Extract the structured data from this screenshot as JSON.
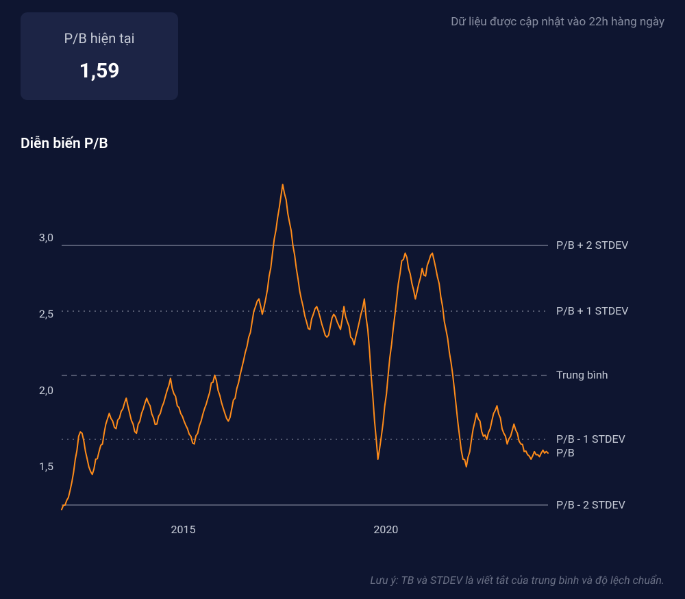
{
  "header": {
    "update_note": "Dữ liệu được cập nhật vào 22h hàng ngày"
  },
  "card": {
    "title": "P/B hiện tại",
    "value": "1,59"
  },
  "chart": {
    "title": "Diễn biến P/B",
    "type": "line",
    "background_color": "#0e1530",
    "line_color": "#ff8c1a",
    "line_width": 2,
    "grid_color": "#6b7186",
    "text_color": "#c8cdd8",
    "label_fontsize": 16,
    "ylim": [
      1.2,
      3.4
    ],
    "yticks": [
      1.5,
      2.0,
      2.5,
      3.0
    ],
    "ytick_labels": [
      "1,5",
      "2,0",
      "2,5",
      "3,0"
    ],
    "x_start_year": 2012,
    "x_end_year": 2024,
    "xticks": [
      2015,
      2020
    ],
    "xtick_labels": [
      "2015",
      "2020"
    ],
    "ref_lines": [
      {
        "y": 2.95,
        "label": "P/B + 2 STDEV",
        "style": "solid"
      },
      {
        "y": 2.52,
        "label": "P/B + 1 STDEV",
        "style": "dotted"
      },
      {
        "y": 2.1,
        "label": "Trung bình",
        "style": "dashed"
      },
      {
        "y": 1.68,
        "label": "P/B - 1 STDEV",
        "style": "dotted"
      },
      {
        "y": 1.59,
        "label": "P/B",
        "style": "none"
      },
      {
        "y": 1.25,
        "label": "P/B - 2 STDEV",
        "style": "solid"
      }
    ],
    "series": [
      1.22,
      1.25,
      1.3,
      1.4,
      1.55,
      1.7,
      1.72,
      1.6,
      1.5,
      1.45,
      1.55,
      1.6,
      1.65,
      1.78,
      1.85,
      1.8,
      1.75,
      1.82,
      1.88,
      1.95,
      1.85,
      1.78,
      1.72,
      1.8,
      1.88,
      1.95,
      1.9,
      1.82,
      1.78,
      1.85,
      1.92,
      2.0,
      2.08,
      1.98,
      1.9,
      1.85,
      1.8,
      1.75,
      1.7,
      1.65,
      1.72,
      1.8,
      1.88,
      1.95,
      2.05,
      2.1,
      2.0,
      1.92,
      1.85,
      1.8,
      1.88,
      1.95,
      2.05,
      2.15,
      2.25,
      2.35,
      2.45,
      2.55,
      2.6,
      2.5,
      2.6,
      2.75,
      2.9,
      3.05,
      3.2,
      3.35,
      3.25,
      3.1,
      2.95,
      2.8,
      2.65,
      2.55,
      2.45,
      2.4,
      2.5,
      2.55,
      2.48,
      2.4,
      2.35,
      2.42,
      2.5,
      2.45,
      2.4,
      2.55,
      2.45,
      2.35,
      2.3,
      2.4,
      2.5,
      2.6,
      2.4,
      2.1,
      1.8,
      1.55,
      1.7,
      1.9,
      2.1,
      2.3,
      2.5,
      2.7,
      2.85,
      2.9,
      2.8,
      2.7,
      2.6,
      2.7,
      2.8,
      2.75,
      2.85,
      2.9,
      2.8,
      2.7,
      2.55,
      2.4,
      2.25,
      2.1,
      1.9,
      1.7,
      1.55,
      1.5,
      1.6,
      1.75,
      1.85,
      1.8,
      1.7,
      1.68,
      1.75,
      1.85,
      1.9,
      1.82,
      1.72,
      1.65,
      1.7,
      1.78,
      1.72,
      1.65,
      1.6,
      1.58,
      1.55,
      1.6,
      1.58,
      1.59,
      1.59,
      1.59
    ]
  },
  "footnote": "Lưu ý: TB và STDEV là viết tắt của trung bình và độ lệch chuẩn."
}
